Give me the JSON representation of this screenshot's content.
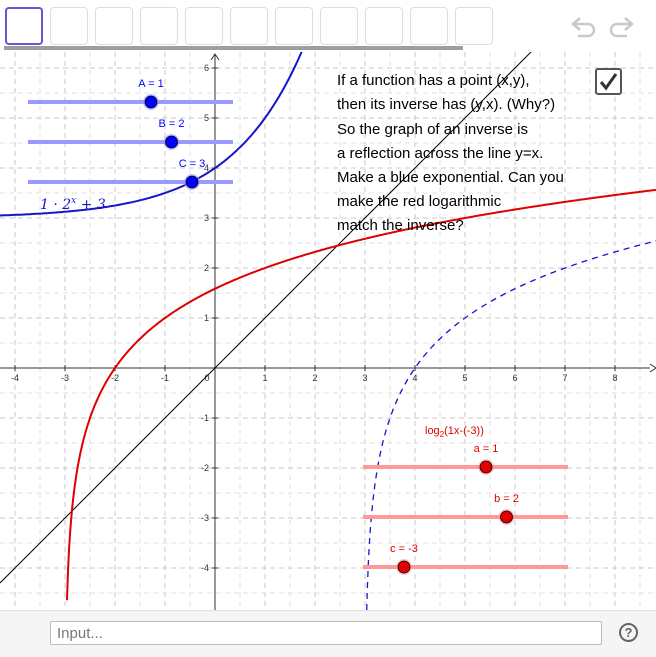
{
  "toolbar": {
    "tool_count": 11,
    "undo_icon": "undo-arrow-icon",
    "redo_icon": "redo-arrow-icon"
  },
  "description": [
    "If a function has a point (x,y),",
    "then its inverse has (y,x). (Why?)",
    "So the graph of an inverse is",
    "a reflection across the line y=x.",
    "Make a blue exponential. Can you",
    "make the red logarithmic",
    "match the inverse?"
  ],
  "checkbox": {
    "checked": true
  },
  "axes": {
    "x_ticks": [
      "-4",
      "-3",
      "-2",
      "-1",
      "0",
      "1",
      "2",
      "3",
      "4",
      "5",
      "6",
      "7",
      "8"
    ],
    "y_ticks": [
      "6",
      "5",
      "4",
      "3",
      "2",
      "1",
      "-1",
      "-2",
      "-3",
      "-4"
    ]
  },
  "sliders": {
    "A": {
      "label": "A = 1",
      "value": 1,
      "min": -5,
      "max": 5
    },
    "B": {
      "label": "B = 2",
      "value": 2,
      "min": -5,
      "max": 5
    },
    "C": {
      "label": "C = 3",
      "value": 3,
      "min": -5,
      "max": 5
    },
    "a": {
      "label": "a = 1",
      "value": 1,
      "min": -5,
      "max": 5
    },
    "b": {
      "label": "b = 2",
      "value": 2,
      "min": -5,
      "max": 5
    },
    "c": {
      "label": "c = -3",
      "value": -3,
      "min": -5,
      "max": 5
    }
  },
  "formulas": {
    "exponential": "1 · 2",
    "exponential_exp": "x",
    "exponential_tail": " + 3",
    "logarithmic": "log",
    "logarithmic_base": "2",
    "logarithmic_arg": "(1x-(-3))"
  },
  "colors": {
    "blue": "#1515cc",
    "red": "#e00000",
    "slider_blue": "#0000ff",
    "slider_red": "#e00000"
  },
  "input": {
    "placeholder": "Input..."
  },
  "help": {
    "label": "?"
  }
}
